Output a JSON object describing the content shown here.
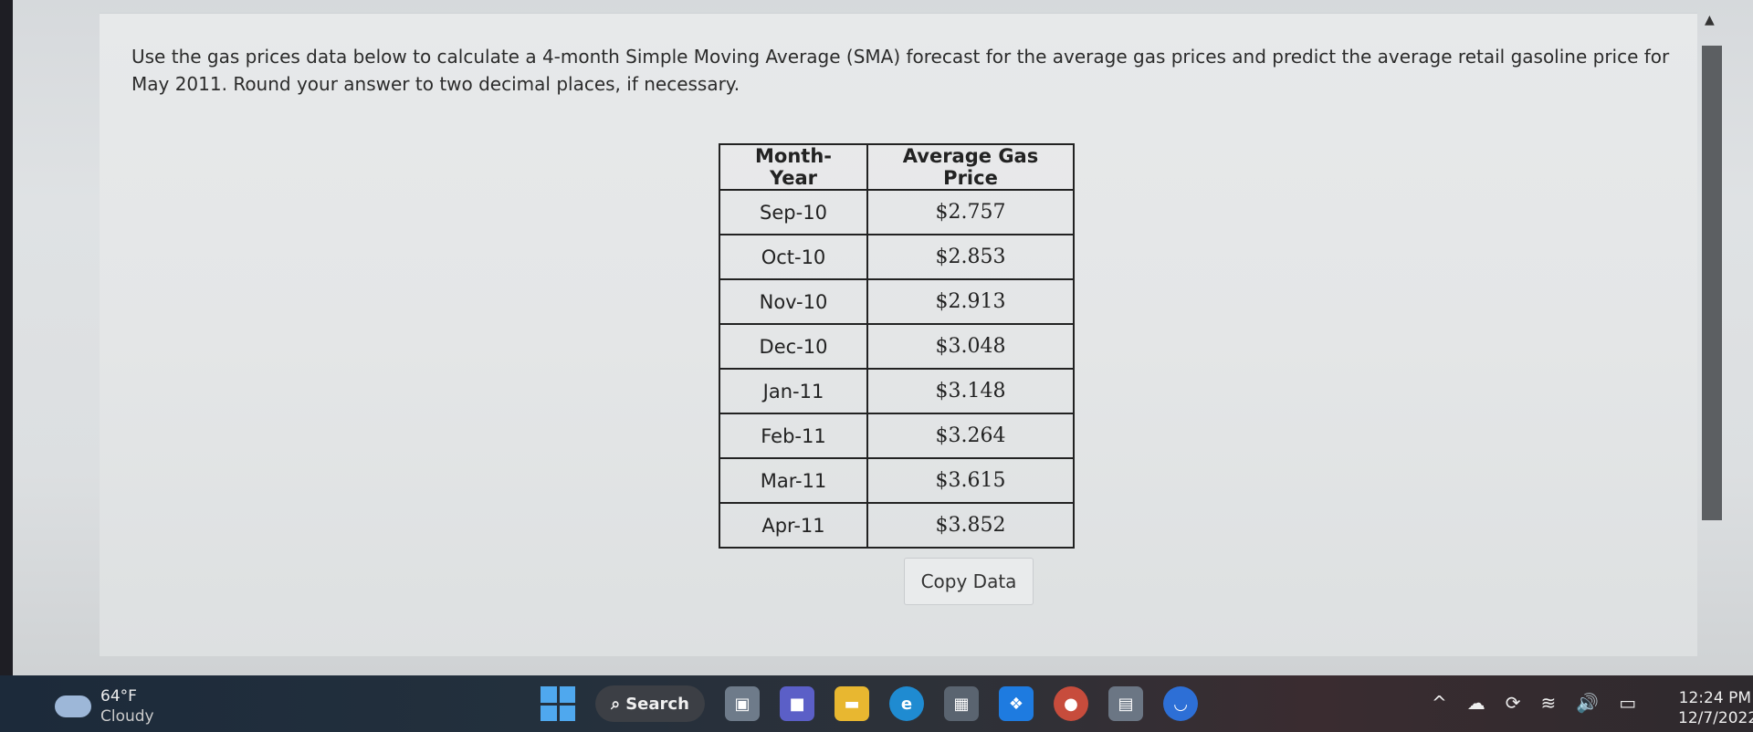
{
  "question": {
    "text": "Use the gas prices data below to calculate a 4-month Simple Moving Average (SMA) forecast for the average gas prices and predict the average retail gasoline price for May 2011. Round your answer to two decimal places, if necessary."
  },
  "table": {
    "headers": [
      "Month-Year",
      "Average Gas Price"
    ],
    "rows": [
      {
        "month": "Sep-10",
        "price": "$2.757"
      },
      {
        "month": "Oct-10",
        "price": "$2.853"
      },
      {
        "month": "Nov-10",
        "price": "$2.913"
      },
      {
        "month": "Dec-10",
        "price": "$3.048"
      },
      {
        "month": "Jan-11",
        "price": "$3.148"
      },
      {
        "month": "Feb-11",
        "price": "$3.264"
      },
      {
        "month": "Mar-11",
        "price": "$3.615"
      },
      {
        "month": "Apr-11",
        "price": "$3.852"
      }
    ]
  },
  "copy_button": {
    "label": "Copy Data"
  },
  "taskbar": {
    "weather_temp": "64°F",
    "weather_condition": "Cloudy",
    "search_label": "Search",
    "time": "12:24 PM",
    "date": "12/7/2022"
  }
}
